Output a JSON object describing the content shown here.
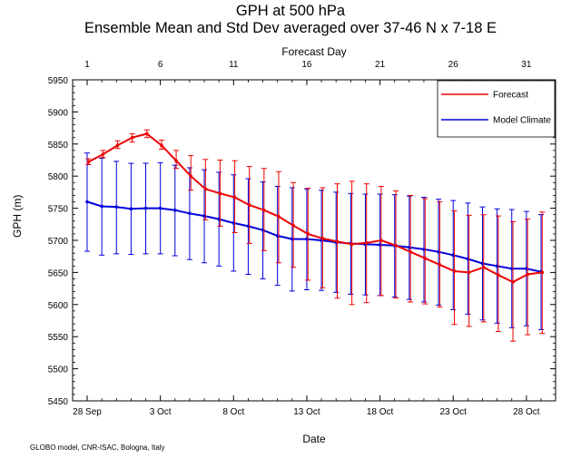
{
  "chart_data": {
    "type": "line",
    "title": "GPH at 500 hPa",
    "subtitle": "Ensemble Mean and Std Dev averaged over 37-46 N x 7-18 E",
    "xlabel": "Date",
    "ylabel": "GPH (m)",
    "top_axis_label": "Forecast Day",
    "top_ticks": [
      1,
      6,
      11,
      16,
      21,
      26,
      31
    ],
    "x_ticks": [
      "28 Sep",
      "3 Oct",
      "8 Oct",
      "13 Oct",
      "18 Oct",
      "23 Oct",
      "28 Oct"
    ],
    "x_range_days": [
      1,
      32
    ],
    "ylim": [
      5450,
      5950
    ],
    "y_ticks": [
      5450,
      5500,
      5550,
      5600,
      5650,
      5700,
      5750,
      5800,
      5850,
      5900,
      5950
    ],
    "legend_position": "top-right",
    "grid": false,
    "series": [
      {
        "name": "Forecast",
        "color": "#ee0000",
        "mean": [
          5822,
          5834,
          5848,
          5860,
          5866,
          5848,
          5824,
          5800,
          5780,
          5773,
          5767,
          5755,
          5747,
          5737,
          5723,
          5710,
          5703,
          5698,
          5694,
          5696,
          5700,
          5692,
          5682,
          5672,
          5662,
          5652,
          5650,
          5658,
          5646,
          5635,
          5647,
          5650
        ],
        "upper": [
          5827,
          5840,
          5855,
          5866,
          5872,
          5856,
          5840,
          5832,
          5826,
          5825,
          5824,
          5815,
          5812,
          5807,
          5790,
          5781,
          5782,
          5788,
          5792,
          5788,
          5784,
          5777,
          5770,
          5765,
          5760,
          5746,
          5739,
          5740,
          5738,
          5729,
          5733,
          5744
        ],
        "lower": [
          5818,
          5829,
          5843,
          5853,
          5860,
          5842,
          5812,
          5778,
          5732,
          5722,
          5712,
          5695,
          5684,
          5665,
          5658,
          5638,
          5626,
          5610,
          5600,
          5603,
          5614,
          5610,
          5604,
          5601,
          5596,
          5569,
          5566,
          5573,
          5558,
          5543,
          5553,
          5555
        ]
      },
      {
        "name": "Model Climate",
        "color": "#0000dd",
        "mean": [
          5760,
          5753,
          5752,
          5749,
          5750,
          5750,
          5747,
          5742,
          5738,
          5733,
          5727,
          5722,
          5716,
          5707,
          5702,
          5702,
          5700,
          5697,
          5695,
          5694,
          5693,
          5692,
          5689,
          5686,
          5682,
          5677,
          5671,
          5664,
          5660,
          5656,
          5656,
          5651
        ],
        "upper": [
          5836,
          5828,
          5823,
          5820,
          5820,
          5821,
          5817,
          5813,
          5810,
          5806,
          5802,
          5796,
          5791,
          5784,
          5782,
          5780,
          5778,
          5775,
          5773,
          5772,
          5772,
          5771,
          5769,
          5767,
          5764,
          5762,
          5758,
          5752,
          5749,
          5748,
          5745,
          5740
        ],
        "lower": [
          5683,
          5677,
          5679,
          5678,
          5679,
          5679,
          5676,
          5670,
          5665,
          5660,
          5652,
          5647,
          5640,
          5630,
          5621,
          5623,
          5622,
          5619,
          5616,
          5615,
          5614,
          5612,
          5608,
          5604,
          5599,
          5592,
          5585,
          5576,
          5571,
          5564,
          5567,
          5561
        ]
      }
    ]
  },
  "credit": "GLOBO model, CNR-ISAC, Bologna, Italy"
}
